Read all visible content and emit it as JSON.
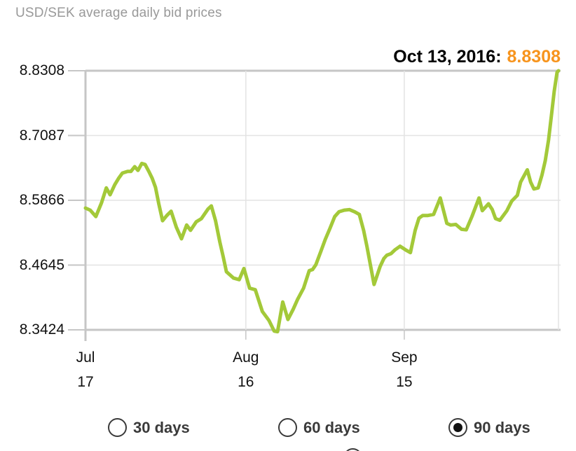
{
  "header": {
    "title": "USD/SEK average daily bid prices"
  },
  "latest": {
    "date_label": "Oct 13, 2016:",
    "value": "8.8308"
  },
  "colors": {
    "line": "#a3c939",
    "latest_value": "#f7941d",
    "grid_minor": "#e3e3e3",
    "grid_major": "#c6c6c6"
  },
  "chart_data": {
    "type": "line",
    "title": "USD/SEK average daily bid prices",
    "xlabel": "",
    "ylabel": "",
    "ylim": [
      8.3424,
      8.8308
    ],
    "grid": true,
    "y_ticks": [
      "8.8308",
      "8.7087",
      "8.5866",
      "8.4645",
      "8.3424"
    ],
    "x_ticks": [
      {
        "pos": 0.0,
        "month": "Jul",
        "day": "17"
      },
      {
        "pos": 0.339,
        "month": "Aug",
        "day": "16"
      },
      {
        "pos": 0.674,
        "month": "Sep",
        "day": "15"
      }
    ],
    "last_point": {
      "date": "Oct 13, 2016",
      "value": 8.8308
    },
    "series": [
      {
        "name": "USD/SEK",
        "points": [
          [
            0.0,
            8.572
          ],
          [
            0.01,
            8.568
          ],
          [
            0.022,
            8.556
          ],
          [
            0.034,
            8.582
          ],
          [
            0.044,
            8.61
          ],
          [
            0.052,
            8.597
          ],
          [
            0.062,
            8.616
          ],
          [
            0.07,
            8.628
          ],
          [
            0.078,
            8.638
          ],
          [
            0.089,
            8.641
          ],
          [
            0.096,
            8.641
          ],
          [
            0.104,
            8.65
          ],
          [
            0.111,
            8.643
          ],
          [
            0.119,
            8.656
          ],
          [
            0.126,
            8.654
          ],
          [
            0.134,
            8.641
          ],
          [
            0.141,
            8.628
          ],
          [
            0.148,
            8.611
          ],
          [
            0.155,
            8.58
          ],
          [
            0.163,
            8.548
          ],
          [
            0.172,
            8.558
          ],
          [
            0.181,
            8.566
          ],
          [
            0.192,
            8.536
          ],
          [
            0.203,
            8.514
          ],
          [
            0.214,
            8.54
          ],
          [
            0.222,
            8.53
          ],
          [
            0.234,
            8.546
          ],
          [
            0.245,
            8.552
          ],
          [
            0.259,
            8.57
          ],
          [
            0.266,
            8.576
          ],
          [
            0.275,
            8.548
          ],
          [
            0.284,
            8.508
          ],
          [
            0.291,
            8.481
          ],
          [
            0.298,
            8.452
          ],
          [
            0.313,
            8.44
          ],
          [
            0.325,
            8.437
          ],
          [
            0.335,
            8.458
          ],
          [
            0.347,
            8.421
          ],
          [
            0.359,
            8.418
          ],
          [
            0.374,
            8.377
          ],
          [
            0.388,
            8.36
          ],
          [
            0.399,
            8.34
          ],
          [
            0.406,
            8.339
          ],
          [
            0.417,
            8.395
          ],
          [
            0.428,
            8.362
          ],
          [
            0.439,
            8.381
          ],
          [
            0.448,
            8.399
          ],
          [
            0.461,
            8.421
          ],
          [
            0.473,
            8.454
          ],
          [
            0.48,
            8.456
          ],
          [
            0.487,
            8.465
          ],
          [
            0.498,
            8.491
          ],
          [
            0.507,
            8.513
          ],
          [
            0.517,
            8.534
          ],
          [
            0.527,
            8.556
          ],
          [
            0.536,
            8.565
          ],
          [
            0.547,
            8.568
          ],
          [
            0.558,
            8.569
          ],
          [
            0.569,
            8.565
          ],
          [
            0.579,
            8.56
          ],
          [
            0.588,
            8.53
          ],
          [
            0.595,
            8.5
          ],
          [
            0.603,
            8.462
          ],
          [
            0.61,
            8.428
          ],
          [
            0.623,
            8.462
          ],
          [
            0.631,
            8.477
          ],
          [
            0.637,
            8.483
          ],
          [
            0.646,
            8.486
          ],
          [
            0.654,
            8.493
          ],
          [
            0.665,
            8.5
          ],
          [
            0.677,
            8.493
          ],
          [
            0.687,
            8.488
          ],
          [
            0.697,
            8.53
          ],
          [
            0.705,
            8.553
          ],
          [
            0.713,
            8.558
          ],
          [
            0.724,
            8.558
          ],
          [
            0.736,
            8.56
          ],
          [
            0.75,
            8.591
          ],
          [
            0.764,
            8.543
          ],
          [
            0.772,
            8.54
          ],
          [
            0.783,
            8.541
          ],
          [
            0.795,
            8.532
          ],
          [
            0.805,
            8.531
          ],
          [
            0.817,
            8.556
          ],
          [
            0.832,
            8.591
          ],
          [
            0.839,
            8.567
          ],
          [
            0.852,
            8.58
          ],
          [
            0.86,
            8.569
          ],
          [
            0.867,
            8.552
          ],
          [
            0.876,
            8.549
          ],
          [
            0.891,
            8.567
          ],
          [
            0.901,
            8.585
          ],
          [
            0.913,
            8.596
          ],
          [
            0.92,
            8.621
          ],
          [
            0.934,
            8.644
          ],
          [
            0.941,
            8.621
          ],
          [
            0.948,
            8.608
          ],
          [
            0.957,
            8.61
          ],
          [
            0.965,
            8.634
          ],
          [
            0.972,
            8.661
          ],
          [
            0.979,
            8.7
          ],
          [
            0.985,
            8.746
          ],
          [
            0.991,
            8.792
          ],
          [
            0.997,
            8.828
          ],
          [
            1.0,
            8.8308
          ]
        ]
      }
    ]
  },
  "controls": {
    "options": [
      {
        "label": "30 days",
        "selected": false
      },
      {
        "label": "60 days",
        "selected": false
      },
      {
        "label": "90 days",
        "selected": true
      }
    ]
  }
}
